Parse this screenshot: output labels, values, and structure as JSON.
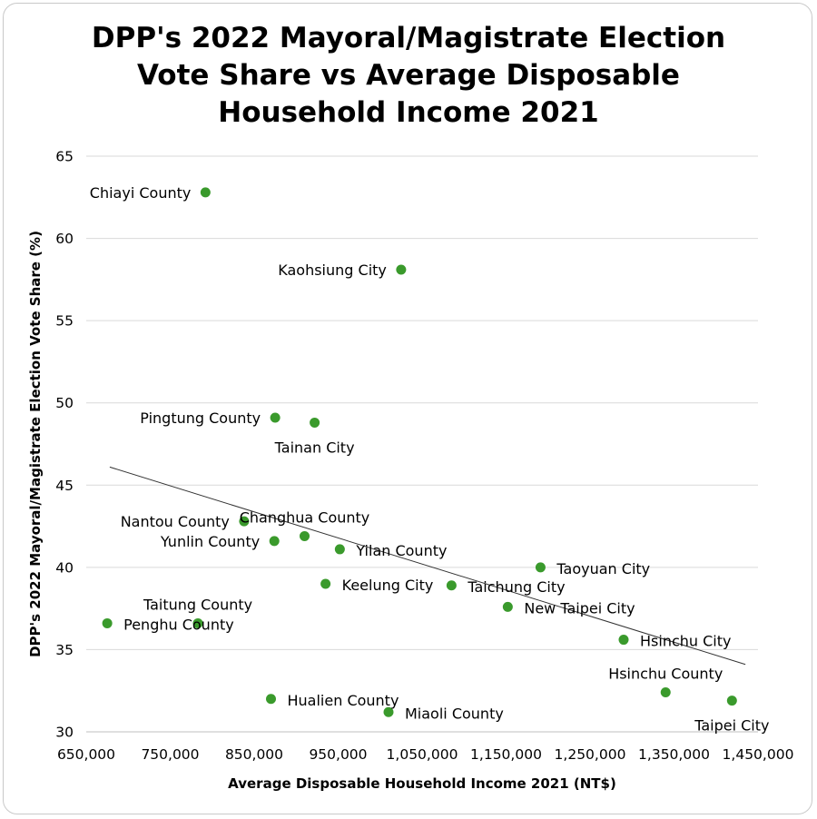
{
  "chart_data": {
    "type": "scatter",
    "title_lines": [
      "DPP's 2022 Mayoral/Magistrate Election",
      "Vote Share vs Average Disposable",
      "Household Income 2021"
    ],
    "xlabel": "Average Disposable Household Income 2021 (NT$)",
    "ylabel": "DPP's 2022 Mayoral/Magistrate Election Vote Share (%)",
    "xlim": [
      650000,
      1450000
    ],
    "ylim": [
      30,
      65
    ],
    "x_ticks": [
      650000,
      750000,
      850000,
      950000,
      1050000,
      1150000,
      1250000,
      1350000,
      1450000
    ],
    "x_tick_labels": [
      "650,000",
      "750,000",
      "850,000",
      "950,000",
      "1,050,000",
      "1,150,000",
      "1,250,000",
      "1,350,000",
      "1,450,000"
    ],
    "y_ticks": [
      30,
      35,
      40,
      45,
      50,
      55,
      60,
      65
    ],
    "y_tick_labels": [
      "30",
      "35",
      "40",
      "45",
      "50",
      "55",
      "60",
      "65"
    ],
    "gridlines": "horizontal",
    "marker_color": "#3a9a2c",
    "trendline": {
      "x": [
        678000,
        1435000
      ],
      "y": [
        46.1,
        34.1
      ],
      "color": "#333333"
    },
    "points": [
      {
        "name": "Chiayi County",
        "x": 792000,
        "y": 62.8,
        "label_pos": "left"
      },
      {
        "name": "Kaohsiung City",
        "x": 1025000,
        "y": 58.1,
        "label_pos": "left"
      },
      {
        "name": "Pingtung County",
        "x": 875000,
        "y": 49.1,
        "label_pos": "left"
      },
      {
        "name": "Tainan City",
        "x": 922000,
        "y": 48.8,
        "label_pos": "below"
      },
      {
        "name": "Nantou County",
        "x": 838000,
        "y": 42.8,
        "label_pos": "left"
      },
      {
        "name": "Changhua County",
        "x": 910000,
        "y": 41.9,
        "label_pos": "above"
      },
      {
        "name": "Yunlin County",
        "x": 874000,
        "y": 41.6,
        "label_pos": "left"
      },
      {
        "name": "Yilan County",
        "x": 952000,
        "y": 41.1,
        "label_pos": "right"
      },
      {
        "name": "Keelung City",
        "x": 935000,
        "y": 39.0,
        "label_pos": "right"
      },
      {
        "name": "Taichung City",
        "x": 1085000,
        "y": 38.9,
        "label_pos": "right"
      },
      {
        "name": "Taoyuan City",
        "x": 1191000,
        "y": 40.0,
        "label_pos": "right"
      },
      {
        "name": "New Taipei City",
        "x": 1152000,
        "y": 37.6,
        "label_pos": "right"
      },
      {
        "name": "Taitung County",
        "x": 783000,
        "y": 36.6,
        "label_pos": "above"
      },
      {
        "name": "Penghu County",
        "x": 675000,
        "y": 36.6,
        "label_pos": "right"
      },
      {
        "name": "Hsinchu City",
        "x": 1290000,
        "y": 35.6,
        "label_pos": "right"
      },
      {
        "name": "Hsinchu County",
        "x": 1340000,
        "y": 32.4,
        "label_pos": "above"
      },
      {
        "name": "Taipei City",
        "x": 1419000,
        "y": 31.9,
        "label_pos": "below"
      },
      {
        "name": "Hualien County",
        "x": 870000,
        "y": 32.0,
        "label_pos": "right"
      },
      {
        "name": "Miaoli County",
        "x": 1010000,
        "y": 31.2,
        "label_pos": "right"
      }
    ]
  }
}
